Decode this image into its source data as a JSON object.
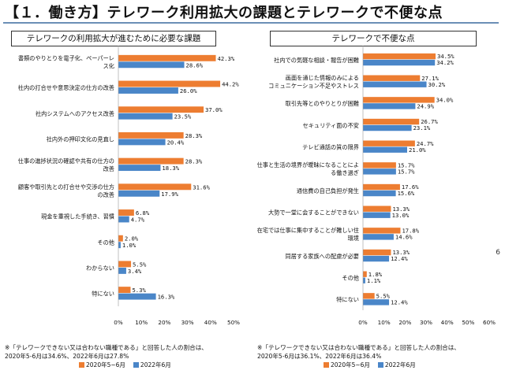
{
  "page_title": "【１．働き方】テレワーク利用拡大の課題とテレワークで不便な点",
  "page_number": "6",
  "colors": {
    "series2020": "#ed7d31",
    "series2022": "#4a86c8",
    "rule": "#6b8fb6"
  },
  "legend": {
    "s2020": "2020年5~6月",
    "s2022": "2022年6月"
  },
  "left_footnote": [
    "※「テレワークできない又は合わない職種である」と回答した人の割合は、",
    "2020年5-6月は34.6%、2022年6月は27.8%"
  ],
  "right_footnote": [
    "※「テレワークできない又は合わない職種である」と回答した人の割合は、",
    "2020年5-6月は36.1%、2022年6月は36.4%"
  ],
  "chart_data": [
    {
      "type": "bar",
      "orientation": "horizontal",
      "title": "テレワークの利用拡大が進むために必要な課題",
      "categories": [
        [
          "書類のやりとりを電子化、ペーパーレ",
          "ス化"
        ],
        [
          "社内の打合せや意思決定の仕方の改善"
        ],
        [
          "社内システムへのアクセス改善"
        ],
        [
          "社内外の押印文化の見直し"
        ],
        [
          "仕事の進捗状況の確認や共有の仕方の",
          "改善"
        ],
        [
          "顧客や取引先との打合せや交渉の仕方",
          "の改善"
        ],
        [
          "現金を重視した手続き、習慣"
        ],
        [
          "その他"
        ],
        [
          "わからない"
        ],
        [
          "特にない"
        ]
      ],
      "series": [
        {
          "name": "2020年5~6月",
          "values": [
            42.3,
            44.2,
            37.0,
            28.3,
            28.3,
            31.6,
            6.8,
            2.0,
            5.5,
            5.3
          ]
        },
        {
          "name": "2022年6月",
          "values": [
            28.6,
            26.0,
            23.5,
            20.4,
            18.3,
            17.9,
            4.7,
            1.0,
            3.4,
            16.3
          ]
        }
      ],
      "xlim": [
        0,
        50
      ],
      "xticks": [
        "0%",
        "10%",
        "20%",
        "30%",
        "40%",
        "50%"
      ]
    },
    {
      "type": "bar",
      "orientation": "horizontal",
      "title": "テレワークで不便な点",
      "categories": [
        [
          "社内での気軽な相談・報告が困難"
        ],
        [
          "画面を通じた情報のみによる",
          "コミュニケーション不足やストレス"
        ],
        [
          "取引先等とのやりとりが困難"
        ],
        [
          "セキュリティ面の不安"
        ],
        [
          "テレビ通話の質の限界"
        ],
        [
          "仕事と生活の境界が曖昧になることによ",
          "る働き過ぎ"
        ],
        [
          "通信費の自己負担が発生"
        ],
        [
          "大勢で一堂に会することができない"
        ],
        [
          "在宅では仕事に集中することが難しい住",
          "環境"
        ],
        [
          "同居する家族への配慮が必要"
        ],
        [
          "その他"
        ],
        [
          "特にない"
        ]
      ],
      "series": [
        {
          "name": "2020年5~6月",
          "values": [
            34.5,
            27.1,
            34.0,
            26.7,
            24.7,
            15.7,
            17.6,
            13.3,
            17.8,
            13.3,
            1.8,
            5.5
          ]
        },
        {
          "name": "2022年6月",
          "values": [
            34.2,
            30.2,
            24.9,
            23.1,
            21.0,
            15.7,
            15.6,
            13.0,
            14.6,
            12.4,
            1.1,
            12.4
          ]
        }
      ],
      "xlim": [
        0,
        60
      ],
      "xticks": [
        "0%",
        "10%",
        "20%",
        "30%",
        "40%",
        "50%",
        "60%"
      ]
    }
  ]
}
